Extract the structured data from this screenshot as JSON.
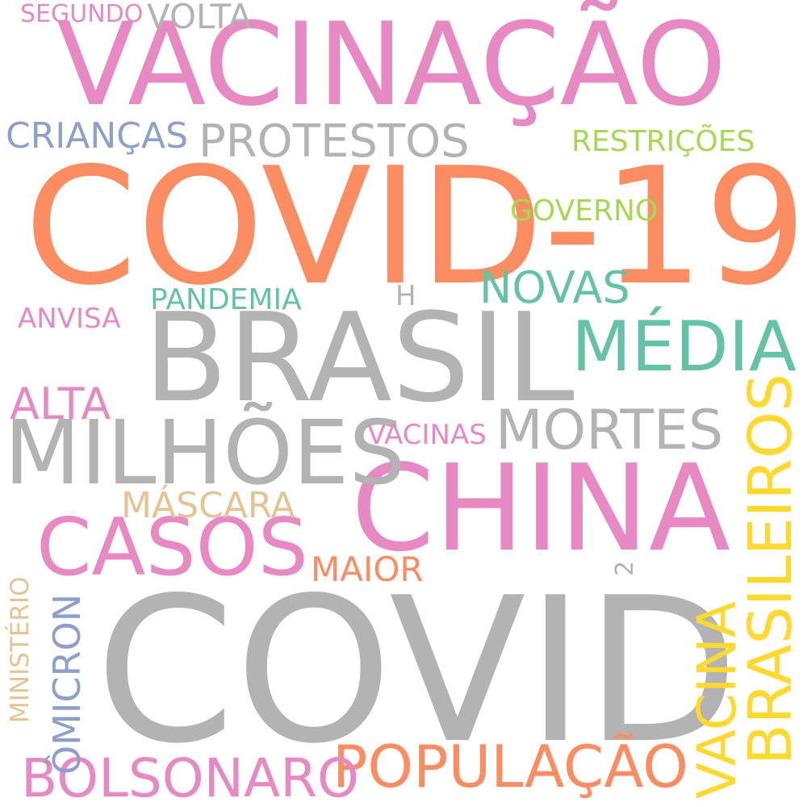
{
  "palette": {
    "pink": "#e78ac3",
    "orange": "#fc8d62",
    "gray": "#b3b3b3",
    "teal": "#66c2a5",
    "blue": "#8da0cb",
    "green": "#a6d854",
    "yellow": "#ffd92f",
    "tan": "#e5c494"
  },
  "words": {
    "covid": "COVID",
    "covid19": "COVID-19",
    "brasil": "BRASIL",
    "vacinacao": "VACINAÇÃO",
    "china": "CHINA",
    "milhoes": "MILHÕES",
    "casos": "CASOS",
    "media": "MÉDIA",
    "brasileiros": "BRASILEIROS",
    "populacao": "POPULAÇÃO",
    "bolsonaro": "BOLSONARO",
    "vacina": "VACINA",
    "mortes": "MORTES",
    "protestos": "PROTESTOS",
    "novas": "NOVAS",
    "alta": "ALTA",
    "omicron": "ÔMICRON",
    "criancas": "CRIANÇAS",
    "mascara": "MÁSCARA",
    "maior": "MAIOR",
    "volta": "VOLTA",
    "restricoes": "RESTRIÇÕES",
    "governo": "GOVERNO",
    "pandemia": "PANDEMIA",
    "vacinas": "VACINAS",
    "anvisa": "ANVISA",
    "segundo": "SEGUNDO",
    "ministerio": "MINISTÉRIO",
    "h": "H",
    "two": "2"
  }
}
